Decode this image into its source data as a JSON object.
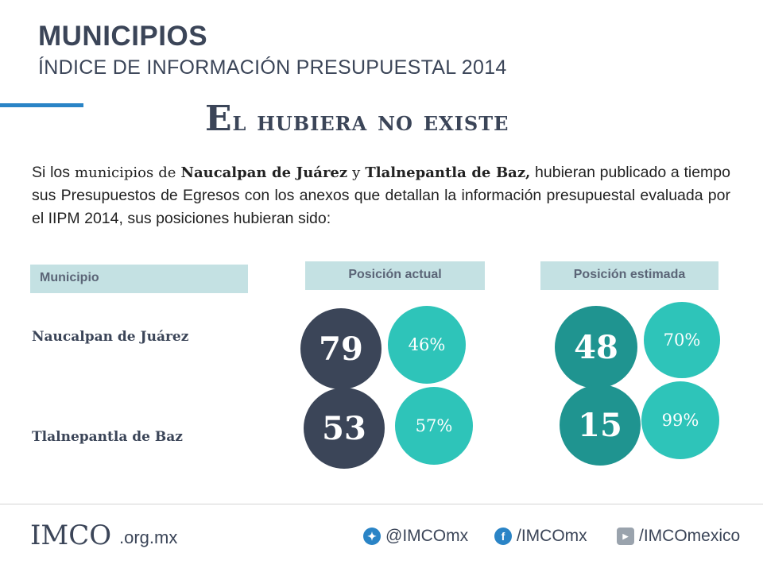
{
  "header": {
    "title": "MUNICIPIOS",
    "subtitle": "ÍNDICE DE INFORMACIÓN PRESUPUESTAL 2014"
  },
  "slide_title_first": "E",
  "slide_title_rest": "l hubiera no existe",
  "intro": {
    "p1": "Si los",
    "p2": " municipios de ",
    "p3": "Naucalpan de Juárez",
    "p4": " y ",
    "p5": "Tlalnepantla de Baz,",
    "p6": " hubieran publicado a tiempo sus Presupuestos de Egresos con los anexos que detallan la información presupuestal evaluada por el IIPM 2014, sus posiciones hubieran sido:"
  },
  "table": {
    "col_municipio": "Municipio",
    "col_actual": "Posición actual",
    "col_estimada": "Posición estimada",
    "rows": [
      {
        "municipio": "Naucalpan de Juárez",
        "actual_rank": "79",
        "actual_pct": "46%",
        "est_rank": "48",
        "est_pct": "70%"
      },
      {
        "municipio": "Tlalnepantla de Baz",
        "actual_rank": "53",
        "actual_pct": "57%",
        "est_rank": "15",
        "est_pct": "99%"
      }
    ]
  },
  "footer": {
    "logo": "IMCO",
    "domain": ".org.mx",
    "twitter": "@IMCOmx",
    "facebook": "/IMCOmx",
    "youtube": "/IMCOmexico"
  },
  "colors": {
    "dark": "#3b4558",
    "teal_dark": "#1f9490",
    "teal_light": "#2ec4b9",
    "header_bg": "#c4e1e3",
    "accent": "#2a84c6"
  }
}
